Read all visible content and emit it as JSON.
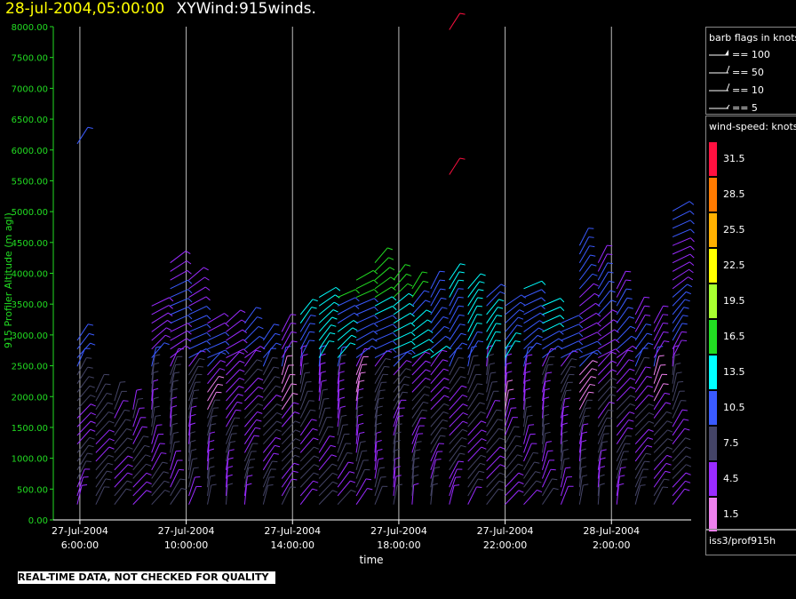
{
  "header": {
    "timestamp": "28-jul-2004,05:00:00",
    "product": "XYWind:915winds."
  },
  "footer": {
    "notice": "REAL-TIME DATA, NOT CHECKED FOR QUALITY"
  },
  "legend": {
    "barb_title": "barb flags in knots",
    "barbs": [
      "== 100",
      "== 50",
      "== 10",
      "== 5"
    ],
    "speed_title": "wind-speed: knots",
    "speed_bins": [
      {
        "label": "31.5",
        "color": "#ff1040"
      },
      {
        "label": "28.5",
        "color": "#ff7a00"
      },
      {
        "label": "25.5",
        "color": "#ffb000"
      },
      {
        "label": "22.5",
        "color": "#ffff00"
      },
      {
        "label": "19.5",
        "color": "#a8ff30"
      },
      {
        "label": "16.5",
        "color": "#22dd22"
      },
      {
        "label": "13.5",
        "color": "#00ffff"
      },
      {
        "label": "10.5",
        "color": "#3a5aff"
      },
      {
        "label": "7.5",
        "color": "#444466"
      },
      {
        "label": "4.5",
        "color": "#9a2bff"
      },
      {
        "label": "1.5",
        "color": "#ee80ee"
      }
    ],
    "source": "iss3/prof915h"
  },
  "chart_data": {
    "type": "scatter",
    "subtype": "wind-barb",
    "xlabel": "time",
    "ylabel": "915 Profiler Altitude (m agl)",
    "ylim": [
      0,
      8000
    ],
    "yticks": [
      "0.00",
      "500.00",
      "1000.00",
      "1500.00",
      "2000.00",
      "2500.00",
      "3000.00",
      "3500.00",
      "4000.00",
      "4500.00",
      "5000.00",
      "5500.00",
      "6000.00",
      "6500.00",
      "7000.00",
      "7500.00",
      "8000.00"
    ],
    "xticks": [
      {
        "date": "27-Jul-2004",
        "time": "6:00:00"
      },
      {
        "date": "27-Jul-2004",
        "time": "10:00:00"
      },
      {
        "date": "27-Jul-2004",
        "time": "14:00:00"
      },
      {
        "date": "27-Jul-2004",
        "time": "18:00:00"
      },
      {
        "date": "27-Jul-2004",
        "time": "22:00:00"
      },
      {
        "date": "28-Jul-2004",
        "time": "2:00:00"
      }
    ],
    "xrange_hours": [
      5.0,
      29.0
    ],
    "grid": "vertical",
    "columns": [
      {
        "t": 5.9,
        "tops": 3000,
        "extra": [
          [
            6100,
            "#3a5aff"
          ]
        ]
      },
      {
        "t": 6.6,
        "tops": 2200
      },
      {
        "t": 7.3,
        "tops": 1950
      },
      {
        "t": 8.0,
        "tops": 1900
      },
      {
        "t": 8.7,
        "tops": 3600
      },
      {
        "t": 9.4,
        "tops": 4250
      },
      {
        "t": 10.1,
        "tops": 3900
      },
      {
        "t": 10.8,
        "tops": 3200
      },
      {
        "t": 11.5,
        "tops": 3200
      },
      {
        "t": 12.2,
        "tops": 3250
      },
      {
        "t": 12.9,
        "tops": 2950
      },
      {
        "t": 13.6,
        "tops": 3050
      },
      {
        "t": 14.3,
        "tops": 3400
      },
      {
        "t": 15.0,
        "tops": 3700
      },
      {
        "t": 15.7,
        "tops": 3700
      },
      {
        "t": 16.4,
        "tops": 3900
      },
      {
        "t": 17.1,
        "tops": 4200
      },
      {
        "t": 17.8,
        "tops": 4000
      },
      {
        "t": 18.5,
        "tops": 3800
      },
      {
        "t": 19.2,
        "tops": 3800
      },
      {
        "t": 19.9,
        "tops": 4000,
        "extra": [
          [
            5600,
            "#ff1040"
          ],
          [
            7950,
            "#ff1040"
          ]
        ]
      },
      {
        "t": 20.6,
        "tops": 3800
      },
      {
        "t": 21.3,
        "tops": 3700
      },
      {
        "t": 22.0,
        "tops": 3500
      },
      {
        "t": 22.7,
        "tops": 3800
      },
      {
        "t": 23.4,
        "tops": 3600
      },
      {
        "t": 24.1,
        "tops": 3300
      },
      {
        "t": 24.8,
        "tops": 4500
      },
      {
        "t": 25.5,
        "tops": 4300
      },
      {
        "t": 26.2,
        "tops": 3800
      },
      {
        "t": 26.9,
        "tops": 3400
      },
      {
        "t": 27.6,
        "tops": 3300
      },
      {
        "t": 28.3,
        "tops": 5100
      }
    ]
  }
}
